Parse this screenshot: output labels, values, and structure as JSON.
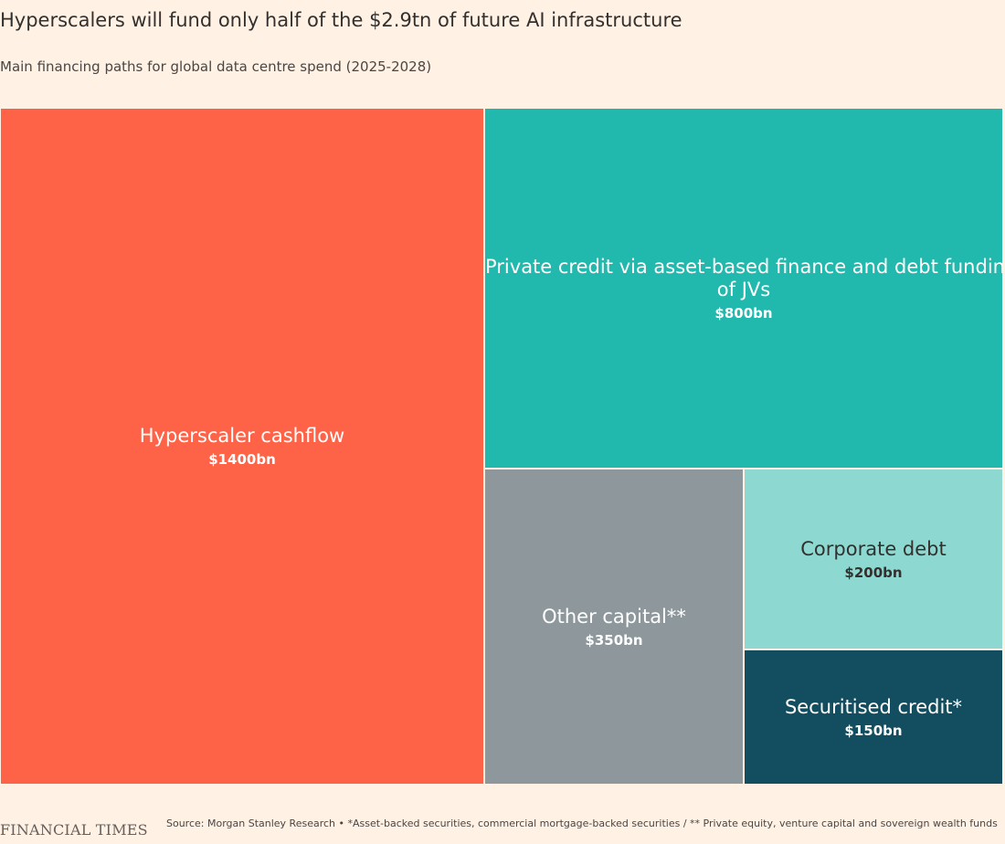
{
  "chart_data": {
    "type": "treemap",
    "title": "Hyperscalers will fund only half of the $2.9tn of future AI infrastructure",
    "subtitle": "Main financing paths for global data centre spend (2025-2028)",
    "unit": "$bn",
    "nodes": [
      {
        "id": "hyperscaler",
        "name": "Hyperscaler cashflow",
        "value": 1400,
        "value_label": "$1400bn",
        "color": "#ff6347",
        "text_color": "#ffffff"
      },
      {
        "id": "private-credit",
        "name": "Private credit via asset-based finance and debt funding of JVs",
        "name_lines": [
          "Private credit via asset-based finance and debt funding",
          "of JVs"
        ],
        "value": 800,
        "value_label": "$800bn",
        "color": "#21b8ad",
        "text_color": "#ffffff"
      },
      {
        "id": "other-capital",
        "name": "Other capital**",
        "value": 350,
        "value_label": "$350bn",
        "color": "#8e989c",
        "text_color": "#ffffff"
      },
      {
        "id": "corporate-debt",
        "name": "Corporate debt",
        "value": 200,
        "value_label": "$200bn",
        "color": "#8dd8d1",
        "text_color": "#33302e"
      },
      {
        "id": "securitised-credit",
        "name": "Securitised credit*",
        "value": 150,
        "value_label": "$150bn",
        "color": "#124e5f",
        "text_color": "#ffffff"
      }
    ]
  },
  "footer": {
    "brand": "FINANCIAL TIMES",
    "source": "Source: Morgan Stanley Research • *Asset-backed securities, commercial mortgage-backed securities / ** Private equity, venture capital and sovereign wealth funds"
  }
}
